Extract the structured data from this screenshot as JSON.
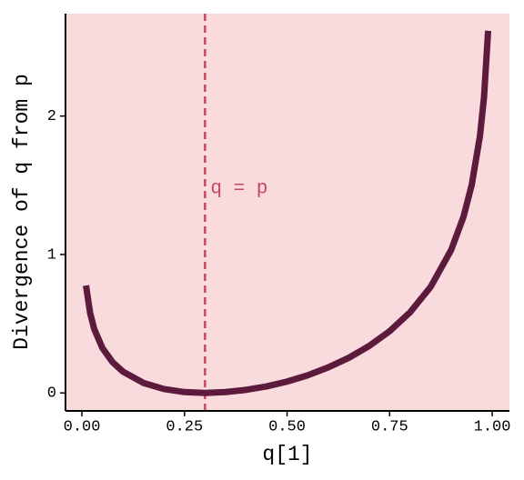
{
  "chart_data": {
    "type": "line",
    "xlabel": "q[1]",
    "ylabel": "Divergence of q from p",
    "x": [
      0.01,
      0.02,
      0.03,
      0.05,
      0.075,
      0.1,
      0.15,
      0.2,
      0.25,
      0.3,
      0.35,
      0.4,
      0.45,
      0.5,
      0.55,
      0.6,
      0.65,
      0.7,
      0.75,
      0.8,
      0.85,
      0.9,
      0.93,
      0.95,
      0.97,
      0.98,
      0.99
    ],
    "series": [
      {
        "color": "#5c1a3c",
        "values": [
          0.776,
          0.577,
          0.462,
          0.324,
          0.221,
          0.154,
          0.072,
          0.028,
          0.006,
          0,
          0.006,
          0.022,
          0.047,
          0.082,
          0.127,
          0.184,
          0.253,
          0.339,
          0.446,
          0.583,
          0.766,
          1.033,
          1.272,
          1.502,
          1.853,
          2.134,
          2.616
        ]
      }
    ],
    "reference_line": {
      "x": 0.3,
      "label": "q = p",
      "color": "#c8475e"
    },
    "background": "#f9dadd",
    "xlim": [
      -0.04,
      1.042
    ],
    "ylim": [
      -0.13,
      2.74
    ],
    "xticks": [
      {
        "value": 0,
        "label": "0.00"
      },
      {
        "value": 0.25,
        "label": "0.25"
      },
      {
        "value": 0.5,
        "label": "0.50"
      },
      {
        "value": 0.75,
        "label": "0.75"
      },
      {
        "value": 1,
        "label": "1.00"
      }
    ],
    "yticks": [
      0,
      1,
      2
    ]
  }
}
